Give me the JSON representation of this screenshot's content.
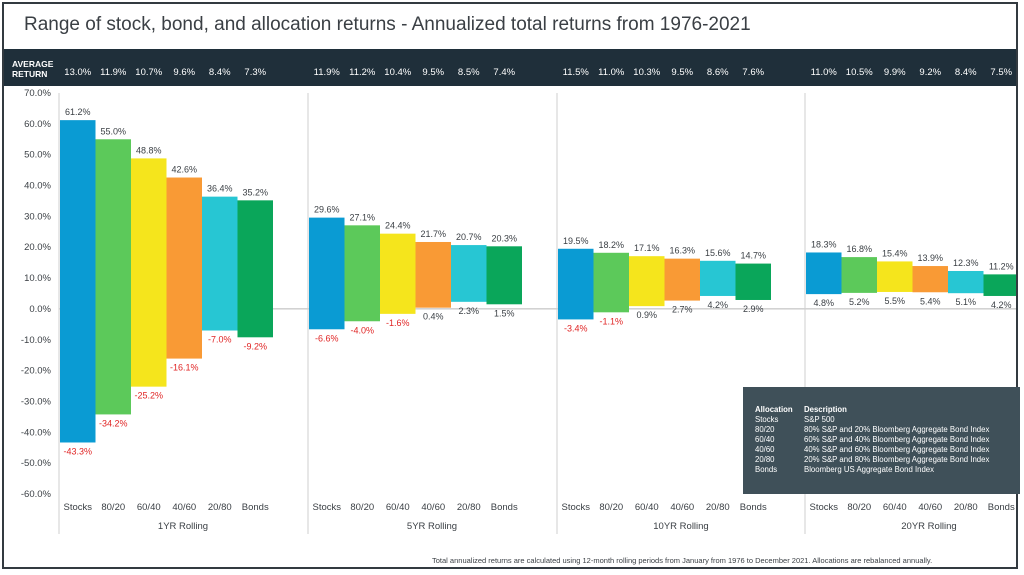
{
  "title": "Range of stock, bond, and allocation returns - Annualized total returns from 1976-2021",
  "average_return_label": "AVERAGE RETURN",
  "footnote": "Total annualized returns are calculated using 12-month rolling periods from January from 1976 to December 2021. Allocations are rebalanced annually.",
  "legend": {
    "header_allocation": "Allocation",
    "header_description": "Description",
    "rows": [
      {
        "allocation": "Stocks",
        "description": "S&P 500"
      },
      {
        "allocation": "80/20",
        "description": "80% S&P and 20% Bloomberg Aggregate Bond Index"
      },
      {
        "allocation": "60/40",
        "description": "60% S&P and 40% Bloomberg Aggregate Bond Index"
      },
      {
        "allocation": "40/60",
        "description": "40% S&P and 60% Bloomberg Aggregate Bond Index"
      },
      {
        "allocation": "20/80",
        "description": "20% S&P and 80% Bloomberg Aggregate Bond Index"
      },
      {
        "allocation": "Bonds",
        "description": "Bloomberg US Aggregate Bond Index"
      }
    ]
  },
  "colors": {
    "Stocks": "#0a9bd3",
    "80/20": "#5cc95a",
    "60/40": "#f5e51c",
    "40/60": "#f99a35",
    "20/80": "#27c6d3",
    "Bonds": "#0aa65a",
    "negative_label": "#e02424",
    "positive_label": "#3a3f44"
  },
  "chart_data": {
    "type": "bar",
    "subtype": "floating-range",
    "ylim": [
      -60,
      70
    ],
    "yticks": [
      "70.0%",
      "60.0%",
      "50.0%",
      "40.0%",
      "30.0%",
      "20.0%",
      "10.0%",
      "0.0%",
      "-10.0%",
      "-20.0%",
      "-30.0%",
      "-40.0%",
      "-50.0%",
      "-60.0%"
    ],
    "ytick_values": [
      70,
      60,
      50,
      40,
      30,
      20,
      10,
      0,
      -10,
      -20,
      -30,
      -40,
      -50,
      -60
    ],
    "categories": [
      "Stocks",
      "80/20",
      "60/40",
      "40/60",
      "20/80",
      "Bonds"
    ],
    "groups": [
      {
        "name": "1YR Rolling",
        "average": [
          "13.0%",
          "11.9%",
          "10.7%",
          "9.6%",
          "8.4%",
          "7.3%"
        ],
        "high": [
          61.2,
          55.0,
          48.8,
          42.6,
          36.4,
          35.2
        ],
        "low": [
          -43.3,
          -34.2,
          -25.2,
          -16.1,
          -7.0,
          -9.2
        ],
        "high_labels": [
          "61.2%",
          "55.0%",
          "48.8%",
          "42.6%",
          "36.4%",
          "35.2%"
        ],
        "low_labels": [
          "-43.3%",
          "-34.2%",
          "-25.2%",
          "-16.1%",
          "-7.0%",
          "-9.2%"
        ]
      },
      {
        "name": "5YR Rolling",
        "average": [
          "11.9%",
          "11.2%",
          "10.4%",
          "9.5%",
          "8.5%",
          "7.4%"
        ],
        "high": [
          29.6,
          27.1,
          24.4,
          21.7,
          20.7,
          20.3
        ],
        "low": [
          -6.6,
          -4.0,
          -1.6,
          0.4,
          2.3,
          1.5
        ],
        "high_labels": [
          "29.6%",
          "27.1%",
          "24.4%",
          "21.7%",
          "20.7%",
          "20.3%"
        ],
        "low_labels": [
          "-6.6%",
          "-4.0%",
          "-1.6%",
          "0.4%",
          "2.3%",
          "1.5%"
        ]
      },
      {
        "name": "10YR Rolling",
        "average": [
          "11.5%",
          "11.0%",
          "10.3%",
          "9.5%",
          "8.6%",
          "7.6%"
        ],
        "high": [
          19.5,
          18.2,
          17.1,
          16.3,
          15.6,
          14.7
        ],
        "low": [
          -3.4,
          -1.1,
          0.9,
          2.7,
          4.2,
          2.9
        ],
        "high_labels": [
          "19.5%",
          "18.2%",
          "17.1%",
          "16.3%",
          "15.6%",
          "14.7%"
        ],
        "low_labels": [
          "-3.4%",
          "-1.1%",
          "0.9%",
          "2.7%",
          "4.2%",
          "2.9%"
        ]
      },
      {
        "name": "20YR Rolling",
        "average": [
          "11.0%",
          "10.5%",
          "9.9%",
          "9.2%",
          "8.4%",
          "7.5%"
        ],
        "high": [
          18.3,
          16.8,
          15.4,
          13.9,
          12.3,
          11.2
        ],
        "low": [
          4.8,
          5.2,
          5.5,
          5.4,
          5.1,
          4.2
        ],
        "high_labels": [
          "18.3%",
          "16.8%",
          "15.4%",
          "13.9%",
          "12.3%",
          "11.2%"
        ],
        "low_labels": [
          "4.8%",
          "5.2%",
          "5.5%",
          "5.4%",
          "5.1%",
          "4.2%"
        ]
      }
    ]
  }
}
